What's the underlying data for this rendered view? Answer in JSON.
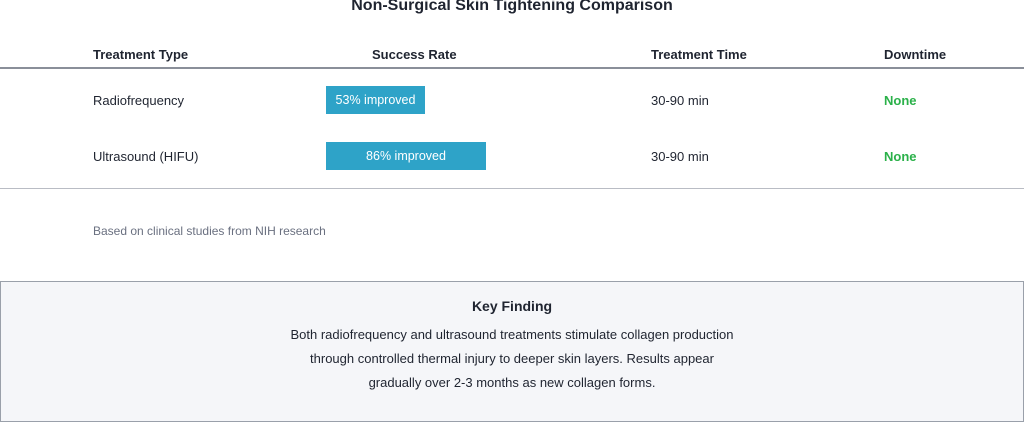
{
  "title": "Non-Surgical Skin Tightening Comparison",
  "table": {
    "headers": [
      "Treatment Type",
      "Success Rate",
      "Treatment Time",
      "Downtime"
    ],
    "rows": [
      {
        "treatment": "Radiofrequency",
        "success_rate_pct": 53,
        "success_label": "53% improved",
        "time": "30-90 min",
        "downtime": "None"
      },
      {
        "treatment": "Ultrasound (HIFU)",
        "success_rate_pct": 86,
        "success_label": "86% improved",
        "time": "30-90 min",
        "downtime": "None"
      }
    ]
  },
  "note": "Based on clinical studies from NIH research",
  "key_finding": {
    "title": "Key Finding",
    "lines": [
      "Both radiofrequency and ultrasound treatments stimulate collagen production",
      "through controlled thermal injury to deeper skin layers. Results appear",
      "gradually over 2-3 months as new collagen forms."
    ]
  },
  "colors": {
    "bar": "#2ea3c8",
    "downtime_none": "#2bb14a",
    "panel_bg": "#f5f6f9"
  }
}
